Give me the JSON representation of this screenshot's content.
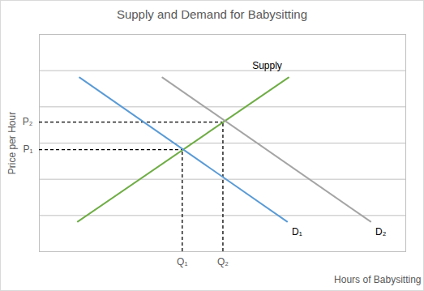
{
  "chart_data": {
    "type": "line",
    "title": "Supply and Demand for Babysitting",
    "x_label": "Hours of Babysitting",
    "y_label": "Price per Hour",
    "xlim": [
      0,
      10
    ],
    "ylim": [
      0,
      6
    ],
    "xticks": [
      {
        "value": 3.9,
        "label": "Q₁"
      },
      {
        "value": 5.01,
        "label": "Q₂"
      }
    ],
    "yticks": [
      {
        "value": 2.82,
        "label": "P₁"
      },
      {
        "value": 3.58,
        "label": "P₂"
      }
    ],
    "grid": true,
    "series": [
      {
        "name": "Supply",
        "color": "#70ad47",
        "x": [
          1.05,
          6.8
        ],
        "values": [
          0.83,
          4.81
        ]
      },
      {
        "name": "D₁",
        "color": "#5b9bd5",
        "x": [
          1.1,
          6.76
        ],
        "values": [
          4.81,
          0.83
        ]
      },
      {
        "name": "D₂",
        "color": "#a5a5a5",
        "x": [
          3.36,
          9.04
        ],
        "values": [
          4.81,
          0.83
        ]
      }
    ]
  }
}
